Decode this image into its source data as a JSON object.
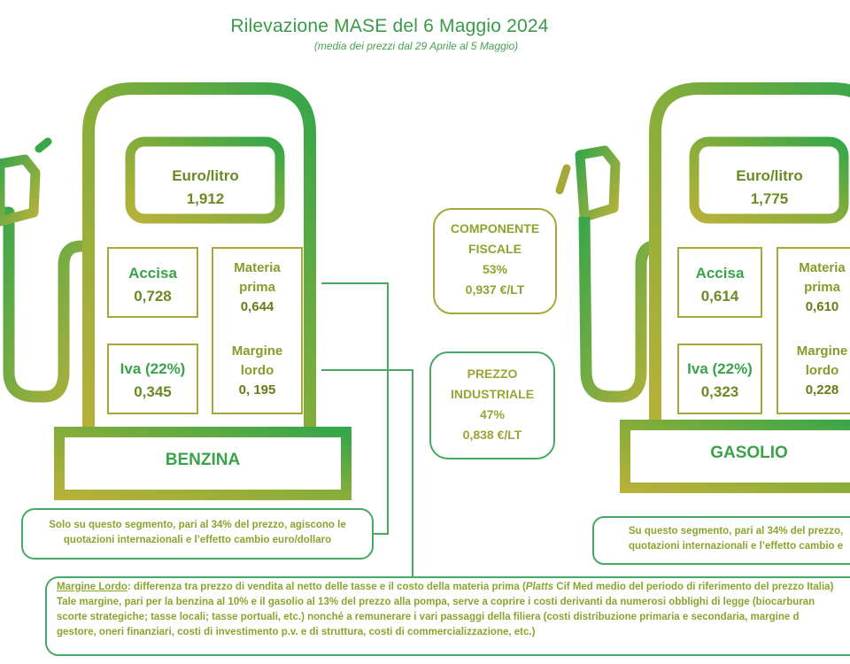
{
  "header": {
    "title": "Rilevazione MASE del 6 Maggio 2024",
    "subtitle": "(media dei prezzi dal 29 Aprile al 5 Maggio)"
  },
  "benzina": {
    "price_label": "Euro/litro",
    "price_value": "1,912",
    "accisa_label": "Accisa",
    "accisa_value": "0,728",
    "iva_label": "Iva (22%)",
    "iva_value": "0,345",
    "materia_label_1": "Materia",
    "materia_label_2": "prima",
    "materia_value": "0,644",
    "margine_label_1": "Margine",
    "margine_label_2": "lordo",
    "margine_value": "0, 195",
    "name": "BENZINA",
    "note_line1": "Solo su questo segmento, pari al 34% del prezzo, agiscono le",
    "note_line2": "quotazioni internazionali e l’effetto cambio euro/dollaro"
  },
  "gasolio": {
    "price_label": "Euro/litro",
    "price_value": "1,775",
    "accisa_label": "Accisa",
    "accisa_value": "0,614",
    "iva_label": "Iva (22%)",
    "iva_value": "0,323",
    "materia_label_1": "Materia",
    "materia_label_2": "prima",
    "materia_value": "0,610",
    "margine_label_1": "Margine",
    "margine_label_2": "lordo",
    "margine_value": "0,228",
    "name": "GASOLIO",
    "note_line1": "Su questo segmento, pari al 34% del prezzo,",
    "note_line2": "quotazioni internazionali e l’effetto cambio e"
  },
  "componente_fiscale": {
    "line1": "COMPONENTE",
    "line2": "FISCALE",
    "percent": "53%",
    "value": "0,937 €/LT"
  },
  "prezzo_industriale": {
    "line1": "PREZZO",
    "line2": "INDUSTRIALE",
    "percent": "47%",
    "value": "0,838 €/LT"
  },
  "footnote": {
    "term": "Margine Lordo",
    "part1": ": differenza tra prezzo di vendita al netto delle tasse e il costo della materia prima (",
    "platts": "Platts",
    "part2": " Cif Med medio del periodo di riferimento del prezzo Italia)",
    "line2": "Tale margine, pari per la benzina al 10% e il gasolio al 13% del prezzo alla pompa, serve a coprire i costi derivanti da numerosi obblighi di legge (biocarburan",
    "line3": "scorte strategiche; tasse locali; tasse portuali, etc.) nonché a remunerare i vari passaggi della filiera (costi distribuzione primaria e secondaria, margine d",
    "line4": "gestore, oneri finanziari, costi di investimento p.v. e di struttura, costi di commercializzazione, etc.)"
  },
  "colors": {
    "green": "#3aa34a",
    "olive": "#8aa52f",
    "dark_olive": "#6b8a24"
  }
}
